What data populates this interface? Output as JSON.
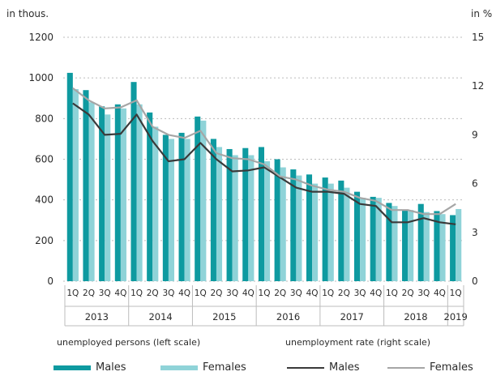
{
  "chart_data": {
    "type": "bar",
    "left_axis_unit": "in thous.",
    "right_axis_unit": "in %",
    "left_ylim": [
      0,
      1200
    ],
    "left_yticks": [
      "0",
      "200",
      "400",
      "600",
      "800",
      "1000",
      "1200"
    ],
    "right_yticks": [
      "0",
      "3",
      "6",
      "9",
      "12",
      "15"
    ],
    "grid": "horizontal dotted",
    "categories": [
      "1Q",
      "2Q",
      "3Q",
      "4Q",
      "1Q",
      "2Q",
      "3Q",
      "4Q",
      "1Q",
      "2Q",
      "3Q",
      "4Q",
      "1Q",
      "2Q",
      "3Q",
      "4Q",
      "1Q",
      "2Q",
      "3Q",
      "4Q",
      "1Q",
      "2Q",
      "3Q",
      "4Q",
      "1Q"
    ],
    "year_labels": [
      "2013",
      "2014",
      "2015",
      "2016",
      "2017",
      "2018",
      "2019"
    ],
    "year_spans": [
      [
        0,
        3
      ],
      [
        4,
        7
      ],
      [
        8,
        11
      ],
      [
        12,
        15
      ],
      [
        16,
        19
      ],
      [
        20,
        23
      ],
      [
        24,
        24
      ]
    ],
    "group_labels": {
      "left": "unemployed persons (left scale)",
      "right": "unemployment rate (right scale)"
    },
    "series": [
      {
        "name": "Males",
        "kind": "bar",
        "axis": "left",
        "color": "#0e9aa0",
        "values": [
          1025,
          940,
          860,
          870,
          980,
          830,
          720,
          730,
          810,
          700,
          650,
          655,
          660,
          600,
          550,
          525,
          510,
          495,
          440,
          415,
          385,
          350,
          380,
          345,
          325
        ]
      },
      {
        "name": "Females",
        "kind": "bar",
        "axis": "left",
        "color": "#8fd3d8",
        "values": [
          945,
          880,
          820,
          850,
          870,
          760,
          700,
          700,
          790,
          660,
          620,
          620,
          590,
          560,
          520,
          480,
          480,
          460,
          410,
          410,
          370,
          350,
          340,
          330,
          355
        ]
      },
      {
        "name": "Males",
        "kind": "line",
        "axis": "left",
        "color": "#3a3a3a",
        "values": [
          875,
          820,
          720,
          725,
          820,
          690,
          590,
          600,
          680,
          600,
          540,
          545,
          560,
          510,
          460,
          440,
          440,
          430,
          380,
          370,
          290,
          290,
          310,
          290,
          280
        ]
      },
      {
        "name": "Females",
        "kind": "line",
        "axis": "left",
        "color": "#a6a6a6",
        "values": [
          950,
          890,
          850,
          855,
          890,
          760,
          720,
          705,
          740,
          630,
          605,
          600,
          575,
          515,
          500,
          470,
          450,
          440,
          410,
          395,
          350,
          350,
          330,
          330,
          380
        ]
      }
    ]
  }
}
